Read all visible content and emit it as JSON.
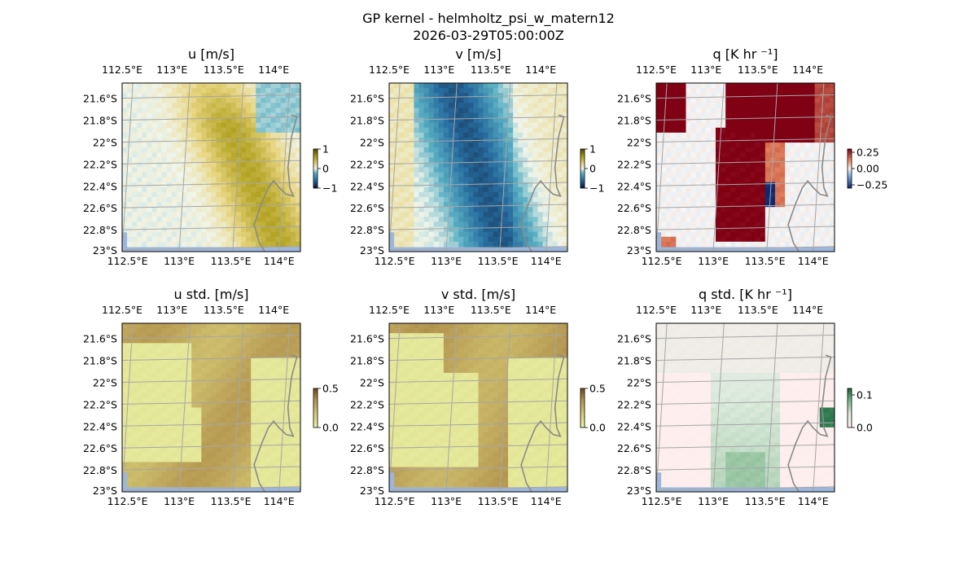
{
  "figure": {
    "title": "GP kernel - helmholtz_psi_w_matern12",
    "subtitle": "2026-03-29T05:00:00Z"
  },
  "chart_data": [
    {
      "type": "heatmap",
      "id": "u",
      "title": "u [m/s]",
      "cmap": "olive-white-teal",
      "colorbar": {
        "ticks": [
          1,
          0,
          -1
        ],
        "tick_labels": [
          "1",
          "0",
          "−1"
        ],
        "range": [
          -1,
          1
        ]
      },
      "lon_ticks": [
        "112.5°E",
        "113°E",
        "113.5°E",
        "114°E"
      ],
      "lat_ticks": [
        "21.6°S",
        "21.8°S",
        "22°S",
        "22.2°S",
        "22.4°S",
        "22.6°S",
        "22.8°S",
        "23°S"
      ],
      "lon_range": [
        112.5,
        114.25
      ],
      "lat_range": [
        -23.05,
        -21.45
      ]
    },
    {
      "type": "heatmap",
      "id": "v",
      "title": "v [m/s]",
      "cmap": "olive-white-teal",
      "colorbar": {
        "ticks": [
          1,
          0,
          -1
        ],
        "tick_labels": [
          "1",
          "0",
          "−1"
        ],
        "range": [
          -1,
          1
        ]
      },
      "lon_ticks": [
        "112.5°E",
        "113°E",
        "113.5°E",
        "114°E"
      ],
      "lat_ticks": [
        "21.6°S",
        "21.8°S",
        "22°S",
        "22.2°S",
        "22.4°S",
        "22.6°S",
        "22.8°S",
        "23°S"
      ],
      "lon_range": [
        112.5,
        114.25
      ],
      "lat_range": [
        -23.05,
        -21.45
      ]
    },
    {
      "type": "heatmap",
      "id": "q",
      "title": "q [K hr ⁻¹]",
      "cmap": "red-white-blue",
      "colorbar": {
        "ticks": [
          0.25,
          0.0,
          -0.25
        ],
        "tick_labels": [
          "0.25",
          "0.00",
          "−0.25"
        ],
        "range": [
          -0.3,
          0.3
        ]
      },
      "lon_ticks": [
        "112.5°E",
        "113°E",
        "113.5°E",
        "114°E"
      ],
      "lat_ticks": [
        "21.6°S",
        "21.8°S",
        "22°S",
        "22.2°S",
        "22.4°S",
        "22.6°S",
        "22.8°S",
        "23°S"
      ],
      "lon_range": [
        112.5,
        114.25
      ],
      "lat_range": [
        -23.05,
        -21.45
      ]
    },
    {
      "type": "heatmap",
      "id": "u_std",
      "title": "u std. [m/s]",
      "cmap": "lime-brown",
      "colorbar": {
        "ticks": [
          0.5,
          0.0
        ],
        "tick_labels": [
          "0.5",
          "0.0"
        ],
        "range": [
          0,
          0.5
        ]
      },
      "lon_ticks": [
        "112.5°E",
        "113°E",
        "113.5°E",
        "114°E"
      ],
      "lat_ticks": [
        "21.6°S",
        "21.8°S",
        "22°S",
        "22.2°S",
        "22.4°S",
        "22.6°S",
        "22.8°S",
        "23°S"
      ],
      "lon_range": [
        112.5,
        114.25
      ],
      "lat_range": [
        -23.05,
        -21.45
      ]
    },
    {
      "type": "heatmap",
      "id": "v_std",
      "title": "v std. [m/s]",
      "cmap": "lime-brown",
      "colorbar": {
        "ticks": [
          0.5,
          0.0
        ],
        "tick_labels": [
          "0.5",
          "0.0"
        ],
        "range": [
          0,
          0.5
        ]
      },
      "lon_ticks": [
        "112.5°E",
        "113°E",
        "113.5°E",
        "114°E"
      ],
      "lat_ticks": [
        "21.6°S",
        "21.8°S",
        "22°S",
        "22.2°S",
        "22.4°S",
        "22.6°S",
        "22.8°S",
        "23°S"
      ],
      "lon_range": [
        112.5,
        114.25
      ],
      "lat_range": [
        -23.05,
        -21.45
      ]
    },
    {
      "type": "heatmap",
      "id": "q_std",
      "title": "q std. [K hr ⁻¹]",
      "cmap": "pink-green",
      "colorbar": {
        "ticks": [
          0.1,
          0.0
        ],
        "tick_labels": [
          "0.1",
          "0.0"
        ],
        "range": [
          0,
          0.12
        ]
      },
      "lon_ticks": [
        "112.5°E",
        "113°E",
        "113.5°E",
        "114°E"
      ],
      "lat_ticks": [
        "21.6°S",
        "21.8°S",
        "22°S",
        "22.2°S",
        "22.4°S",
        "22.6°S",
        "22.8°S",
        "23°S"
      ],
      "lon_range": [
        112.5,
        114.25
      ],
      "lat_range": [
        -23.05,
        -21.45
      ]
    }
  ]
}
